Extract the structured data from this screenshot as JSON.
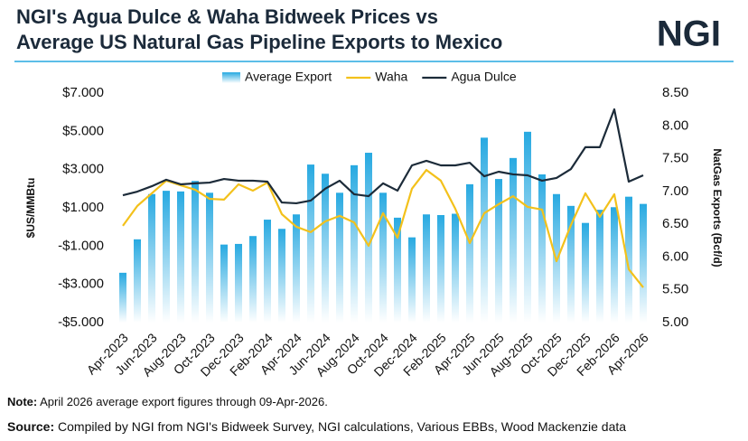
{
  "chart_data": {
    "type": "bar-line",
    "title": [
      "NGI's Agua Dulce & Waha Bidweek Prices vs",
      "Average US Natural Gas Pipeline Exports to Mexico"
    ],
    "logo": "NGI",
    "ylabel": "$US/MMBtu",
    "y2label": "NatGas Exports (Bcf/d)",
    "categories": [
      "Apr-2023",
      null,
      "Jun-2023",
      null,
      "Aug-2023",
      null,
      "Oct-2023",
      null,
      "Dec-2023",
      null,
      "Feb-2024",
      null,
      "Apr-2024",
      null,
      "Jun-2024",
      null,
      "Aug-2024",
      null,
      "Oct-2024",
      null,
      "Dec-2024",
      null,
      "Feb-2025",
      null,
      "Apr-2025",
      null,
      "Jun-2025",
      null,
      "Aug-2025",
      null,
      "Oct-2025",
      null,
      "Dec-2025",
      null,
      "Feb-2026",
      null,
      "Apr-2026"
    ],
    "ylim": [
      -5,
      7
    ],
    "yticks": [
      {
        "value": 7,
        "label": "$7.000"
      },
      {
        "value": 5,
        "label": "$5.000"
      },
      {
        "value": 3,
        "label": "$3.000"
      },
      {
        "value": 1,
        "label": "$1.000"
      },
      {
        "value": -1,
        "label": "-$1.000"
      },
      {
        "value": -3,
        "label": "-$3.000"
      },
      {
        "value": -5,
        "label": "-$5.000"
      }
    ],
    "y2lim": [
      5,
      8.5
    ],
    "y2ticks": [
      {
        "value": 8.5,
        "label": "8.50"
      },
      {
        "value": 8,
        "label": "8.00"
      },
      {
        "value": 7.5,
        "label": "7.50"
      },
      {
        "value": 7,
        "label": "7.00"
      },
      {
        "value": 6.5,
        "label": "6.50"
      },
      {
        "value": 6,
        "label": "6.00"
      },
      {
        "value": 5.5,
        "label": "5.50"
      },
      {
        "value": 5,
        "label": "5.00"
      }
    ],
    "series": [
      {
        "name": "Average Export",
        "type": "bar",
        "axis": "y2",
        "color": "#27a9e1",
        "values": [
          5.76,
          6.27,
          6.96,
          7.01,
          7.0,
          7.16,
          6.98,
          6.19,
          6.2,
          6.32,
          6.57,
          6.43,
          6.65,
          7.41,
          7.27,
          6.98,
          7.4,
          7.59,
          6.98,
          6.6,
          6.3,
          6.65,
          6.64,
          6.66,
          7.11,
          7.82,
          7.19,
          7.51,
          7.91,
          7.26,
          6.96,
          6.78,
          6.52,
          6.72,
          6.76,
          6.92,
          6.81
        ]
      },
      {
        "name": "Waha",
        "type": "line",
        "color": "#f3c11b",
        "values": [
          0.06,
          1.1,
          1.76,
          2.42,
          2.18,
          1.95,
          1.47,
          1.43,
          2.23,
          1.9,
          2.32,
          0.67,
          0.01,
          -0.27,
          0.29,
          0.58,
          0.24,
          -0.98,
          0.72,
          -0.56,
          2.0,
          2.98,
          2.42,
          0.95,
          -0.84,
          0.72,
          1.19,
          1.61,
          1.05,
          0.91,
          -1.79,
          0.1,
          1.76,
          0.53,
          1.71,
          -2.21,
          -3.16
        ]
      },
      {
        "name": "Agua Dulce",
        "type": "line",
        "color": "#1c2b39",
        "values": [
          1.66,
          1.85,
          2.13,
          2.47,
          2.23,
          2.28,
          2.32,
          2.51,
          2.42,
          2.42,
          2.37,
          1.28,
          1.24,
          1.38,
          2.0,
          2.42,
          1.71,
          1.61,
          2.28,
          1.9,
          3.22,
          3.46,
          3.22,
          3.22,
          3.36,
          2.65,
          2.89,
          2.75,
          2.7,
          2.42,
          2.56,
          3.03,
          4.17,
          4.17,
          6.15,
          2.37,
          2.7
        ]
      }
    ],
    "note_label": "Note:",
    "note": "April 2026 average export figures through 09-Apr-2026.",
    "source_label": "Source:",
    "source": "Compiled by NGI from NGI's Bidweek Survey, NGI calculations, Various EBBs, Wood Mackenzie data"
  }
}
